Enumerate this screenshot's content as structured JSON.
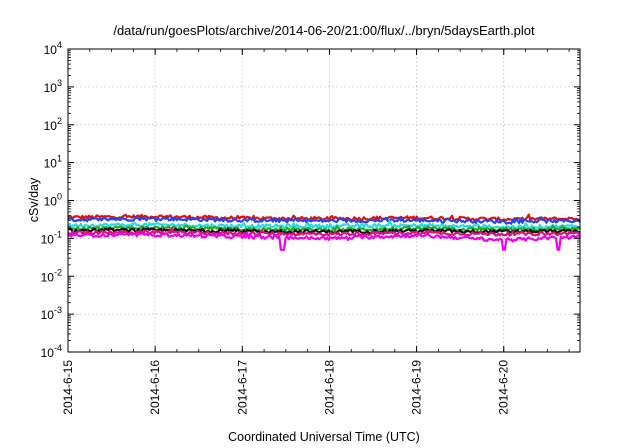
{
  "chart_data": {
    "type": "line",
    "title": "/data/run/goesPlots/archive/2014-06-20/21:00/flux/../bryn/5daysEarth.plot",
    "xlabel": "Coordinated Universal Time (UTC)",
    "ylabel": "cSv/day",
    "y_scale": "log",
    "ylim": [
      0.0001,
      10000
    ],
    "y_ticks": [
      {
        "base": "10",
        "exp": "4"
      },
      {
        "base": "10",
        "exp": "3"
      },
      {
        "base": "10",
        "exp": "2"
      },
      {
        "base": "10",
        "exp": "1"
      },
      {
        "base": "10",
        "exp": "0"
      },
      {
        "base": "10",
        "exp": "-1"
      },
      {
        "base": "10",
        "exp": "-2"
      },
      {
        "base": "10",
        "exp": "-3"
      },
      {
        "base": "10",
        "exp": "-4"
      }
    ],
    "x_ticks": [
      "2014-6-15",
      "2014-6-16",
      "2014-6-17",
      "2014-6-18",
      "2014-6-19",
      "2014-6-20"
    ],
    "xlim": [
      "2014-06-15T00:00",
      "2014-06-20T21:00"
    ],
    "grid": true,
    "series": [
      {
        "color": "#dd1111",
        "x": [
          "2014-06-15",
          "2014-06-16",
          "2014-06-17",
          "2014-06-18",
          "2014-06-19",
          "2014-06-20",
          "2014-06-20T21:00"
        ],
        "values": [
          0.36,
          0.38,
          0.34,
          0.33,
          0.35,
          0.32,
          0.33
        ]
      },
      {
        "color": "#2244ee",
        "x": [
          "2014-06-15",
          "2014-06-16",
          "2014-06-17",
          "2014-06-18",
          "2014-06-19",
          "2014-06-20",
          "2014-06-20T21:00"
        ],
        "values": [
          0.31,
          0.33,
          0.3,
          0.29,
          0.3,
          0.28,
          0.29
        ]
      },
      {
        "color": "#22dddd",
        "x": [
          "2014-06-15",
          "2014-06-16",
          "2014-06-17",
          "2014-06-18",
          "2014-06-19",
          "2014-06-20",
          "2014-06-20T21:00"
        ],
        "values": [
          0.22,
          0.23,
          0.21,
          0.21,
          0.22,
          0.2,
          0.21
        ]
      },
      {
        "color": "#22aa22",
        "x": [
          "2014-06-15",
          "2014-06-16",
          "2014-06-17",
          "2014-06-18",
          "2014-06-19",
          "2014-06-20",
          "2014-06-20T21:00"
        ],
        "values": [
          0.18,
          0.19,
          0.175,
          0.17,
          0.18,
          0.17,
          0.175
        ]
      },
      {
        "color": "#111111",
        "x": [
          "2014-06-15",
          "2014-06-16",
          "2014-06-17",
          "2014-06-18",
          "2014-06-19",
          "2014-06-20",
          "2014-06-20T21:00"
        ],
        "values": [
          0.16,
          0.165,
          0.155,
          0.15,
          0.16,
          0.15,
          0.155
        ]
      },
      {
        "color": "#dd1177",
        "x": [
          "2014-06-15",
          "2014-06-16",
          "2014-06-17",
          "2014-06-18",
          "2014-06-19",
          "2014-06-20",
          "2014-06-20T21:00"
        ],
        "values": [
          0.14,
          0.145,
          0.135,
          0.13,
          0.14,
          0.13,
          0.135
        ]
      },
      {
        "color": "#ee00ee",
        "x": [
          "2014-06-15",
          "2014-06-16",
          "2014-06-17",
          "2014-06-18",
          "2014-06-19",
          "2014-06-20",
          "2014-06-20T21:00"
        ],
        "values": [
          0.12,
          0.125,
          0.11,
          0.1,
          0.12,
          0.09,
          0.11
        ],
        "dips": [
          {
            "x": "2014-06-17T11:00",
            "value": 0.05
          },
          {
            "x": "2014-06-20T00:00",
            "value": 0.05
          },
          {
            "x": "2014-06-20T15:00",
            "value": 0.05
          }
        ]
      }
    ]
  }
}
